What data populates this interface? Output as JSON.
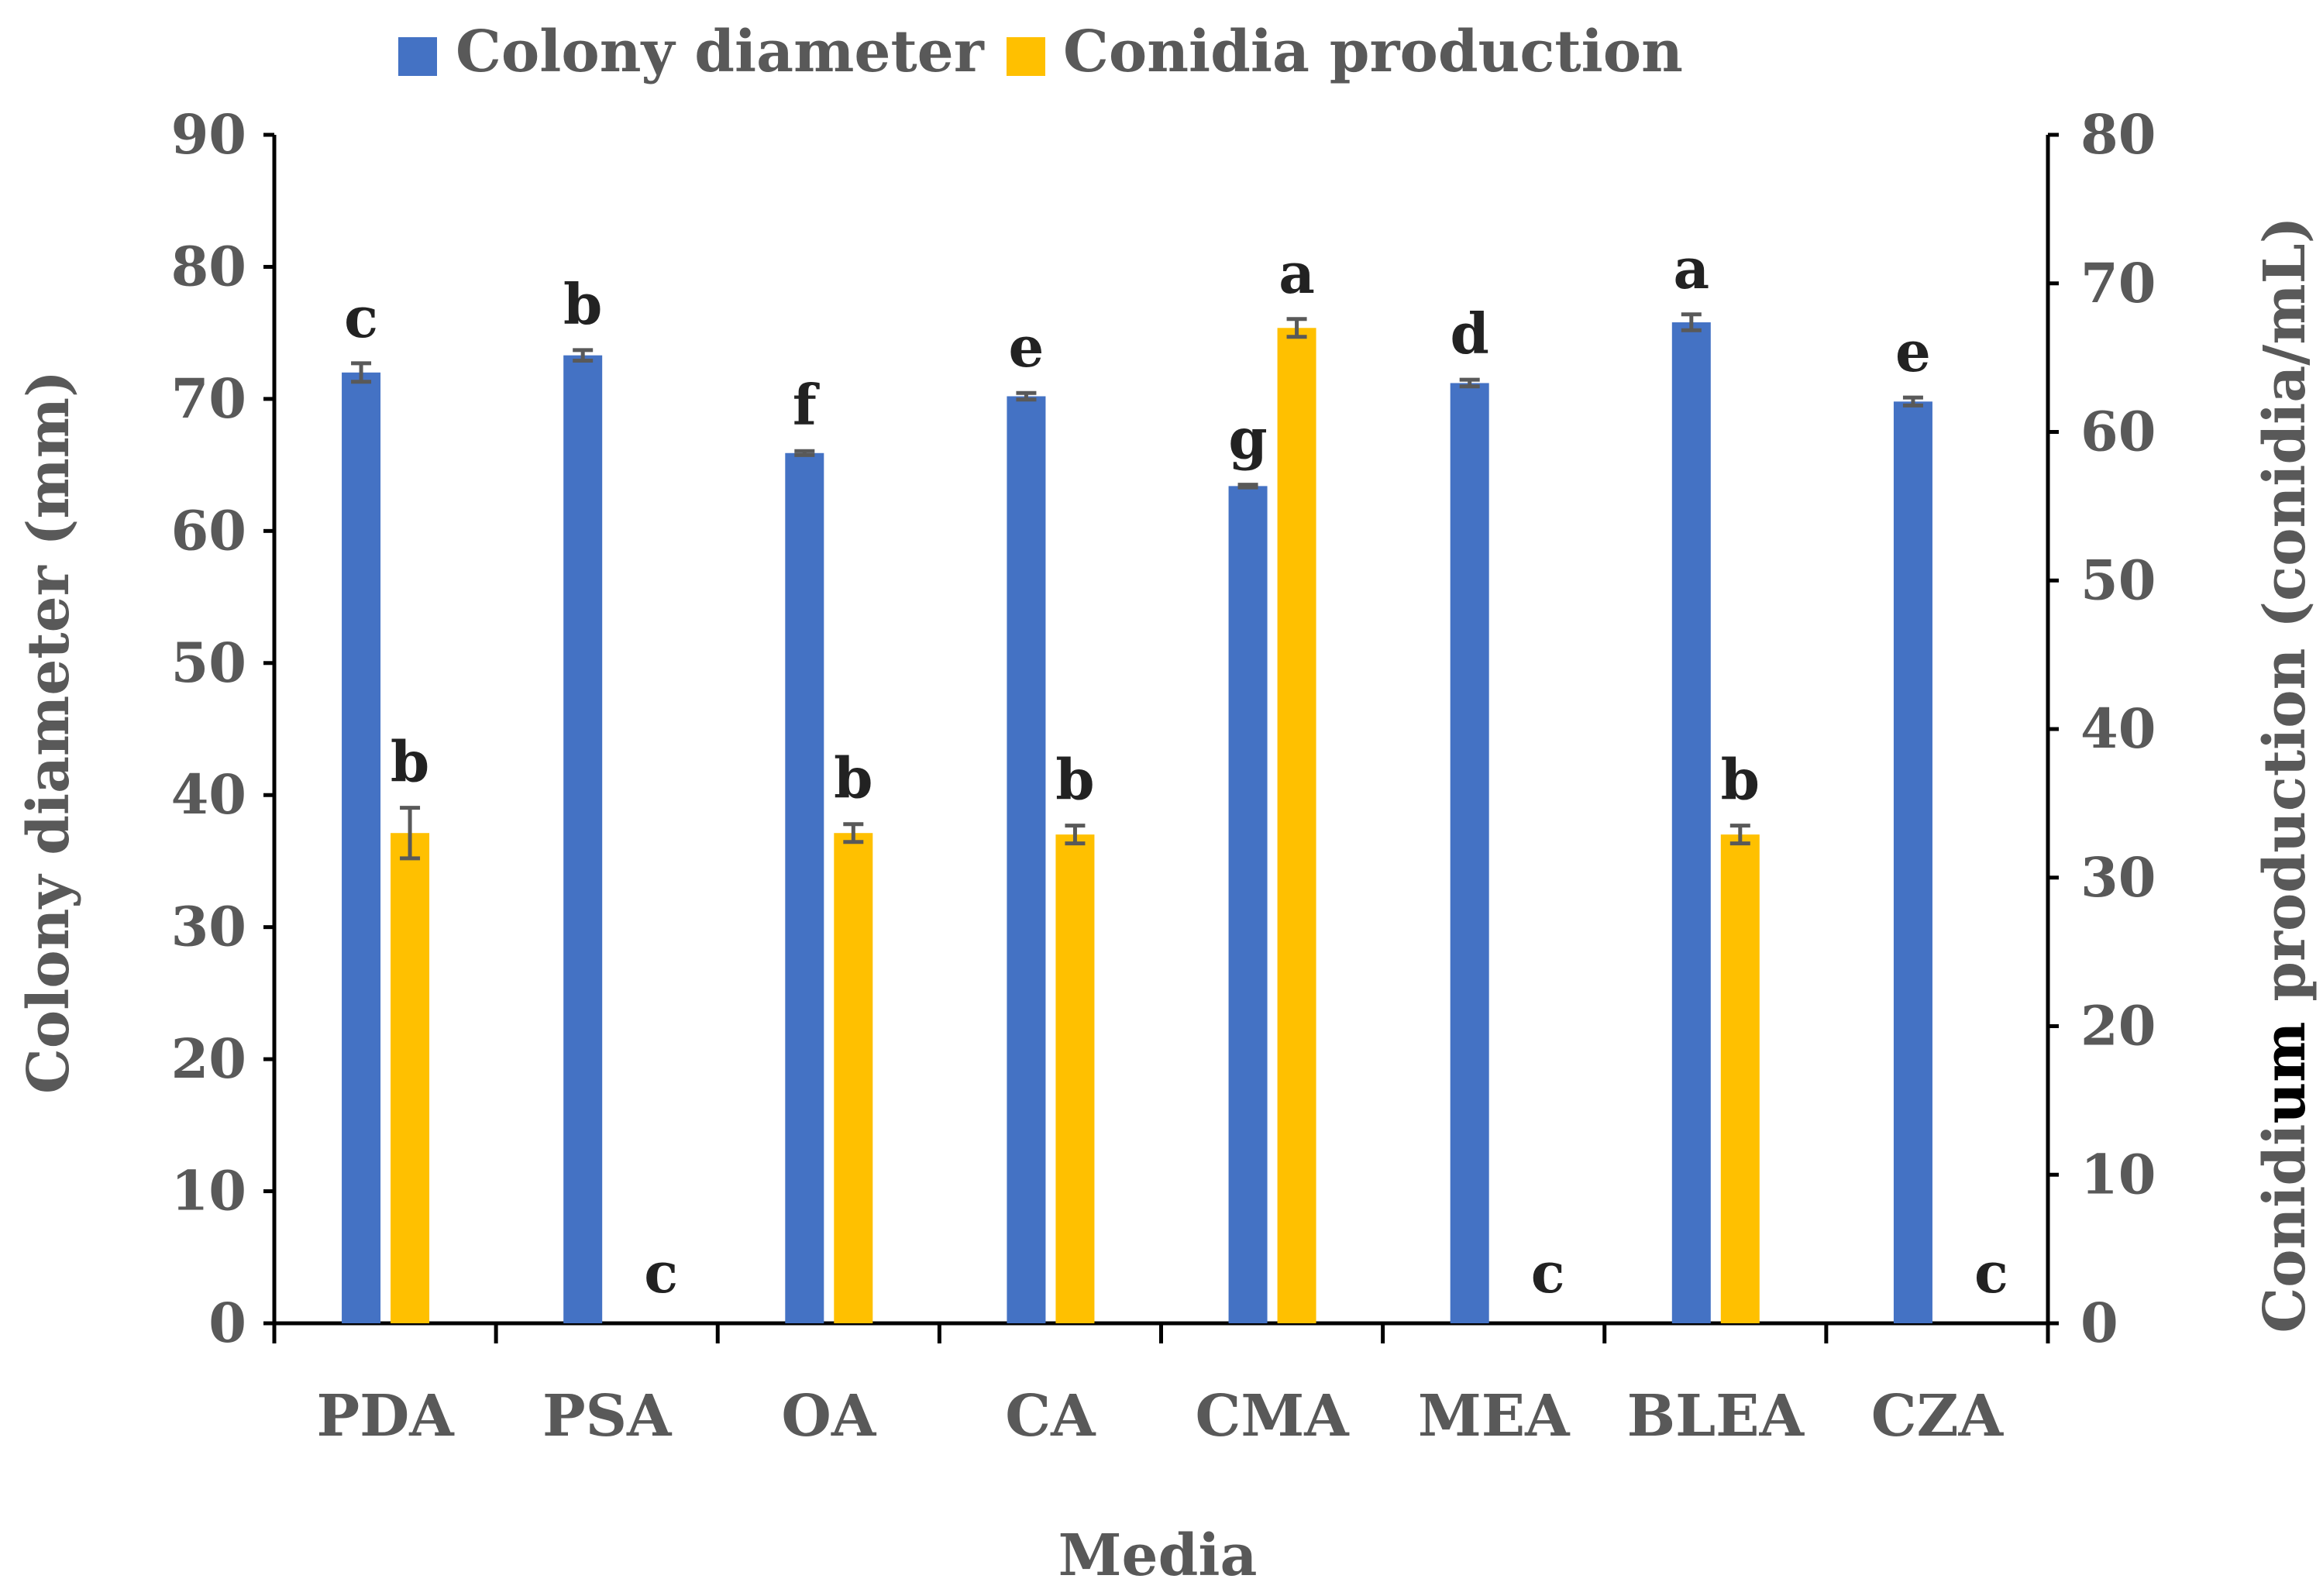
{
  "chart_data": {
    "type": "bar",
    "title": "",
    "categories": [
      "PDA",
      "PSA",
      "OA",
      "CA",
      "CMA",
      "MEA",
      "BLEA",
      "CZA"
    ],
    "xlabel": "Media",
    "ylabel_left": "Colony diameter (mm)",
    "ylabel_right_parts": [
      "Conidi",
      "um",
      " production (conidia/mL)"
    ],
    "ylim_left": [
      0,
      90
    ],
    "ylim_right": [
      0,
      80
    ],
    "left_ticks": [
      "0",
      "10",
      "20",
      "30",
      "40",
      "50",
      "60",
      "70",
      "80",
      "90"
    ],
    "right_ticks": [
      "0",
      "10",
      "20",
      "30",
      "40",
      "50",
      "60",
      "70",
      "80"
    ],
    "legend_position": "top",
    "grid": false,
    "series": [
      {
        "name": "Colony diameter",
        "axis": "left",
        "color": "#4472C4",
        "values": [
          72.0,
          73.3,
          65.9,
          70.2,
          63.4,
          71.2,
          75.8,
          69.8
        ],
        "errors": [
          0.7,
          0.4,
          0.15,
          0.25,
          0.1,
          0.25,
          0.6,
          0.3
        ],
        "letters": [
          "c",
          "b",
          "f",
          "e",
          "g",
          "d",
          "a",
          "e"
        ]
      },
      {
        "name": "Conidia production",
        "axis": "right",
        "color": "#FFC000",
        "values": [
          33.0,
          0,
          33.0,
          32.9,
          67.0,
          0,
          32.9,
          0
        ],
        "errors": [
          1.7,
          0,
          0.6,
          0.6,
          0.6,
          0,
          0.6,
          0
        ],
        "letters": [
          "b",
          "c",
          "b",
          "b",
          "a",
          "c",
          "b",
          "c"
        ]
      }
    ],
    "error_bar_color": "#595959"
  }
}
